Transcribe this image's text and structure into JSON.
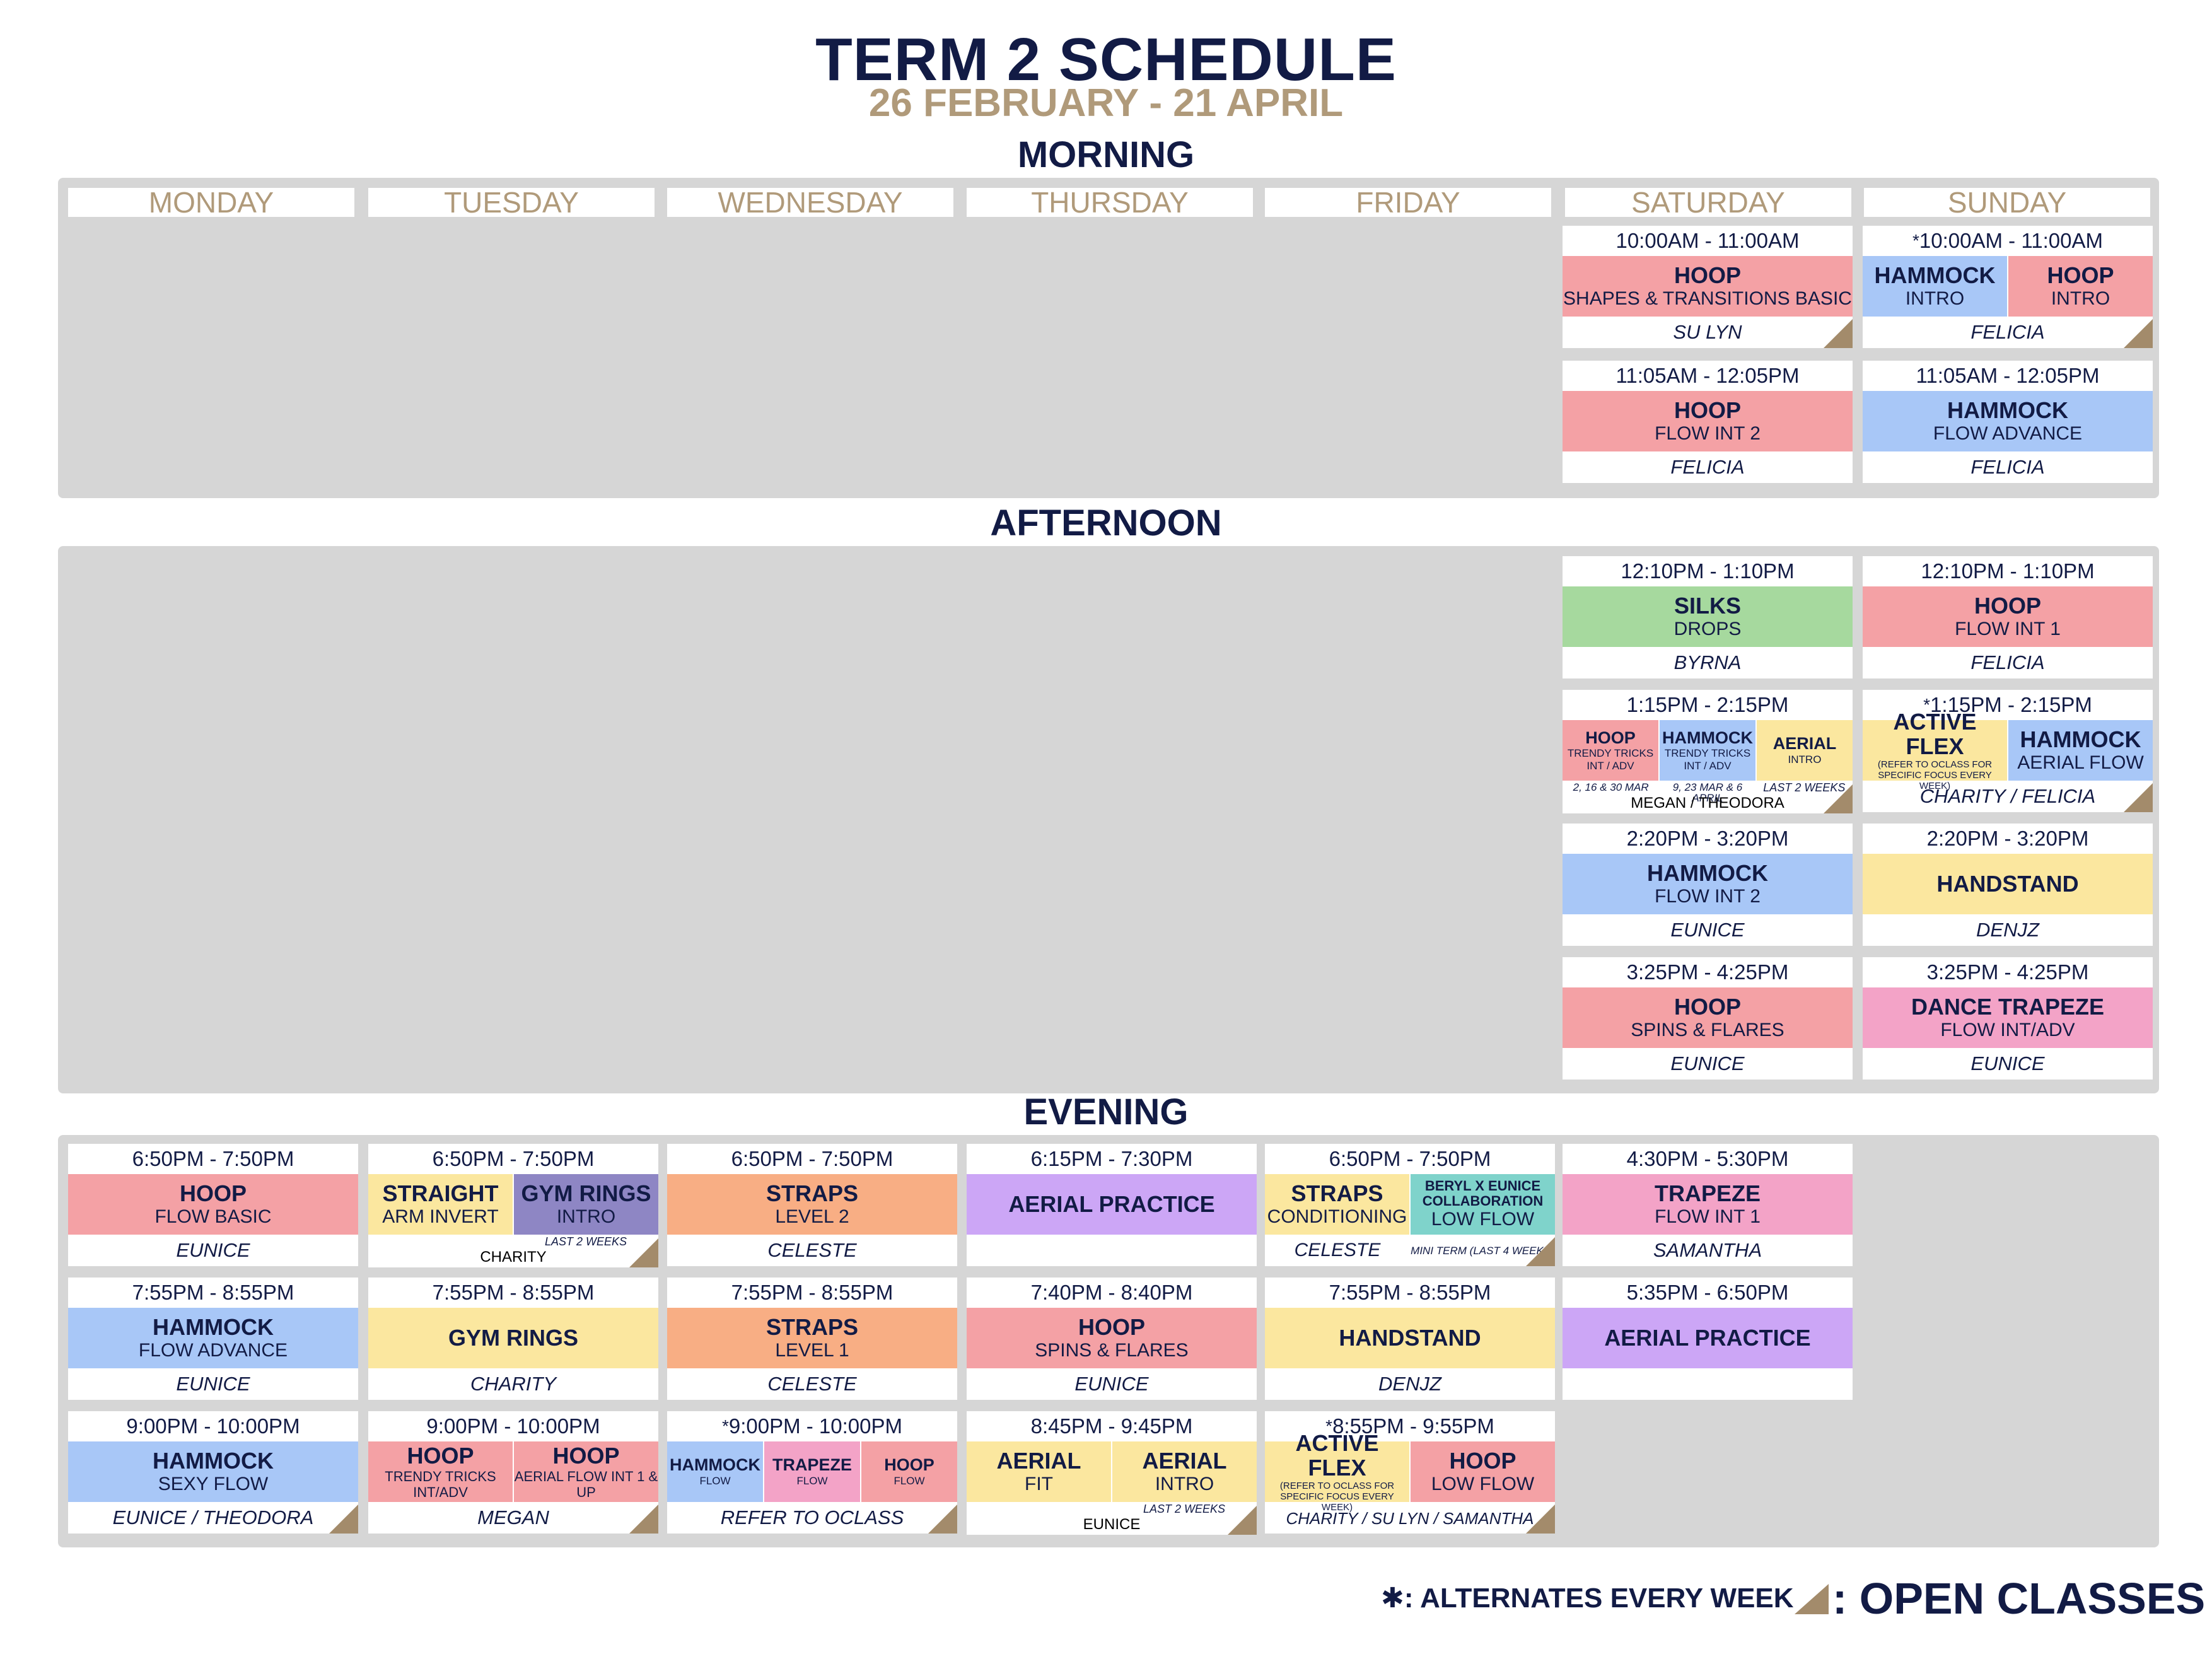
{
  "header": {
    "title": "TERM 2 SCHEDULE",
    "date_range": "26 FEBRUARY - 21 APRIL"
  },
  "sections": {
    "morning": "MORNING",
    "afternoon": "AFTERNOON",
    "evening": "EVENING"
  },
  "days": [
    "MONDAY",
    "TUESDAY",
    "WEDNESDAY",
    "THURSDAY",
    "FRIDAY",
    "SATURDAY",
    "SUNDAY"
  ],
  "morning": {
    "sat1": {
      "time": "10:00AM - 11:00AM",
      "parts": [
        {
          "name": "HOOP",
          "sub": "SHAPES & TRANSITIONS BASIC",
          "color": "pink"
        }
      ],
      "instructor": "SU LYN",
      "open": true
    },
    "sun1": {
      "time": "10:00AM - 11:00AM",
      "alternates": true,
      "parts": [
        {
          "name": "HAMMOCK",
          "sub": "INTRO",
          "color": "blue"
        },
        {
          "name": "HOOP",
          "sub": "INTRO",
          "color": "pink"
        }
      ],
      "instructor": "FELICIA",
      "open": true
    },
    "sat2": {
      "time": "11:05AM - 12:05PM",
      "parts": [
        {
          "name": "HOOP",
          "sub": "FLOW INT 2",
          "color": "pink"
        }
      ],
      "instructor": "FELICIA",
      "open": false
    },
    "sun2": {
      "time": "11:05AM - 12:05PM",
      "parts": [
        {
          "name": "HAMMOCK",
          "sub": "FLOW ADVANCE",
          "color": "blue"
        }
      ],
      "instructor": "FELICIA",
      "open": false
    }
  },
  "afternoon": {
    "sat1": {
      "time": "12:10PM - 1:10PM",
      "parts": [
        {
          "name": "SILKS",
          "sub": "DROPS",
          "color": "green"
        }
      ],
      "instructor": "BYRNA",
      "open": false
    },
    "sun1": {
      "time": "12:10PM - 1:10PM",
      "parts": [
        {
          "name": "HOOP",
          "sub": "FLOW INT 1",
          "color": "pink"
        }
      ],
      "instructor": "FELICIA",
      "open": false
    },
    "sat2": {
      "time": "1:15PM - 2:15PM",
      "parts": [
        {
          "name": "HOOP",
          "sub": "TRENDY TRICKS INT / ADV",
          "color": "pink"
        },
        {
          "name": "HAMMOCK",
          "sub": "TRENDY TRICKS INT / ADV",
          "color": "blue"
        },
        {
          "name": "AERIAL",
          "sub": "INTRO",
          "color": "yellow"
        }
      ],
      "notes": [
        "2, 16 & 30 MAR",
        "9, 23 MAR & 6 APRIL",
        "LAST 2 WEEKS"
      ],
      "instructor": "MEGAN / THEODORA",
      "open": true
    },
    "sun2": {
      "time": "1:15PM - 2:15PM",
      "alternates": true,
      "parts": [
        {
          "name": "ACTIVE FLEX",
          "sub": "(REFER TO OCLASS FOR SPECIFIC FOCUS EVERY WEEK)",
          "color": "yellow"
        },
        {
          "name": "HAMMOCK",
          "sub": "AERIAL FLOW",
          "color": "blue"
        }
      ],
      "instructor": "CHARITY / FELICIA",
      "open": true
    },
    "sat3": {
      "time": "2:20PM - 3:20PM",
      "parts": [
        {
          "name": "HAMMOCK",
          "sub": "FLOW INT 2",
          "color": "blue"
        }
      ],
      "instructor": "EUNICE",
      "open": false
    },
    "sun3": {
      "time": "2:20PM - 3:20PM",
      "parts": [
        {
          "name": "HANDSTAND",
          "sub": "",
          "color": "yellow"
        }
      ],
      "instructor": "DENJZ",
      "open": false
    },
    "sat4": {
      "time": "3:25PM - 4:25PM",
      "parts": [
        {
          "name": "HOOP",
          "sub": "SPINS & FLARES",
          "color": "pink"
        }
      ],
      "instructor": "EUNICE",
      "open": false
    },
    "sun4": {
      "time": "3:25PM - 4:25PM",
      "parts": [
        {
          "name": "DANCE TRAPEZE",
          "sub": "FLOW INT/ADV",
          "color": "rose"
        }
      ],
      "instructor": "EUNICE",
      "open": false
    }
  },
  "evening": {
    "mon1": {
      "time": "6:50PM - 7:50PM",
      "parts": [
        {
          "name": "HOOP",
          "sub": "FLOW BASIC",
          "color": "pink"
        }
      ],
      "instructor": "EUNICE",
      "open": false
    },
    "tue1": {
      "time": "6:50PM - 7:50PM",
      "parts": [
        {
          "name": "STRAIGHT",
          "sub": "ARM INVERT",
          "color": "yellow"
        },
        {
          "name": "GYM RINGS",
          "sub": "INTRO",
          "color": "darkpurple"
        }
      ],
      "notes": [
        "",
        "LAST 2 WEEKS"
      ],
      "instructor": "CHARITY",
      "open": true
    },
    "wed1": {
      "time": "6:50PM - 7:50PM",
      "parts": [
        {
          "name": "STRAPS",
          "sub": "LEVEL 2",
          "color": "orange"
        }
      ],
      "instructor": "CELESTE",
      "open": false
    },
    "thu1": {
      "time": "6:15PM - 7:30PM",
      "parts": [
        {
          "name": "AERIAL PRACTICE",
          "sub": "",
          "color": "purple"
        }
      ],
      "instructor": "",
      "open": false
    },
    "fri1": {
      "time": "6:50PM - 7:50PM",
      "parts": [
        {
          "name": "STRAPS",
          "sub": "CONDITIONING",
          "color": "yellow"
        },
        {
          "name": "BERYL X EUNICE COLLABORATION",
          "sub": "LOW FLOW",
          "color": "teal"
        }
      ],
      "notes": [
        "CELESTE",
        "MINI TERM (LAST 4 WEEKS)"
      ],
      "instructor": "",
      "open": true
    },
    "sat1": {
      "time": "4:30PM - 5:30PM",
      "parts": [
        {
          "name": "TRAPEZE",
          "sub": "FLOW INT 1",
          "color": "rose"
        }
      ],
      "instructor": "SAMANTHA",
      "open": false
    },
    "mon2": {
      "time": "7:55PM - 8:55PM",
      "parts": [
        {
          "name": "HAMMOCK",
          "sub": "FLOW ADVANCE",
          "color": "blue"
        }
      ],
      "instructor": "EUNICE",
      "open": false
    },
    "tue2": {
      "time": "7:55PM - 8:55PM",
      "parts": [
        {
          "name": "GYM RINGS",
          "sub": "",
          "color": "yellow"
        }
      ],
      "instructor": "CHARITY",
      "open": false
    },
    "wed2": {
      "time": "7:55PM - 8:55PM",
      "parts": [
        {
          "name": "STRAPS",
          "sub": "LEVEL 1",
          "color": "orange"
        }
      ],
      "instructor": "CELESTE",
      "open": false
    },
    "thu2": {
      "time": "7:40PM - 8:40PM",
      "parts": [
        {
          "name": "HOOP",
          "sub": "SPINS & FLARES",
          "color": "pink"
        }
      ],
      "instructor": "EUNICE",
      "open": false
    },
    "fri2": {
      "time": "7:55PM - 8:55PM",
      "parts": [
        {
          "name": "HANDSTAND",
          "sub": "",
          "color": "yellow"
        }
      ],
      "instructor": "DENJZ",
      "open": false
    },
    "sat2": {
      "time": "5:35PM - 6:50PM",
      "parts": [
        {
          "name": "AERIAL PRACTICE",
          "sub": "",
          "color": "purple"
        }
      ],
      "instructor": "",
      "open": false
    },
    "mon3": {
      "time": "9:00PM - 10:00PM",
      "parts": [
        {
          "name": "HAMMOCK",
          "sub": "SEXY FLOW",
          "color": "blue"
        }
      ],
      "instructor": "EUNICE / THEODORA",
      "open": true
    },
    "tue3": {
      "time": "9:00PM - 10:00PM",
      "parts": [
        {
          "name": "HOOP",
          "sub": "TRENDY TRICKS INT/ADV",
          "color": "pink"
        },
        {
          "name": "HOOP",
          "sub": "AERIAL FLOW INT 1 & UP",
          "color": "pink"
        }
      ],
      "instructor": "MEGAN",
      "open": true
    },
    "wed3": {
      "time": "9:00PM - 10:00PM",
      "alternates": true,
      "parts": [
        {
          "name": "HAMMOCK",
          "sub": "FLOW",
          "color": "blue"
        },
        {
          "name": "TRAPEZE",
          "sub": "FLOW",
          "color": "rose"
        },
        {
          "name": "HOOP",
          "sub": "FLOW",
          "color": "pink"
        }
      ],
      "instructor": "REFER TO OCLASS",
      "open": true
    },
    "thu3": {
      "time": "8:45PM - 9:45PM",
      "parts": [
        {
          "name": "AERIAL",
          "sub": "FIT",
          "color": "yellow"
        },
        {
          "name": "AERIAL",
          "sub": "INTRO",
          "color": "yellow"
        }
      ],
      "notes": [
        "",
        "LAST 2 WEEKS"
      ],
      "instructor": "EUNICE",
      "open": true
    },
    "fri3": {
      "time": "8:55PM - 9:55PM",
      "alternates": true,
      "parts": [
        {
          "name": "ACTIVE FLEX",
          "sub": "(REFER TO OCLASS FOR SPECIFIC FOCUS EVERY WEEK)",
          "color": "yellow"
        },
        {
          "name": "HOOP",
          "sub": "LOW FLOW",
          "color": "pink"
        }
      ],
      "instructor": "CHARITY / SU LYN / SAMANTHA",
      "open": true
    }
  },
  "legend": {
    "asterisk_symbol": "✱",
    "asterisk_text": ": ALTERNATES EVERY WEEK",
    "open_text": ": OPEN CLASSES"
  }
}
